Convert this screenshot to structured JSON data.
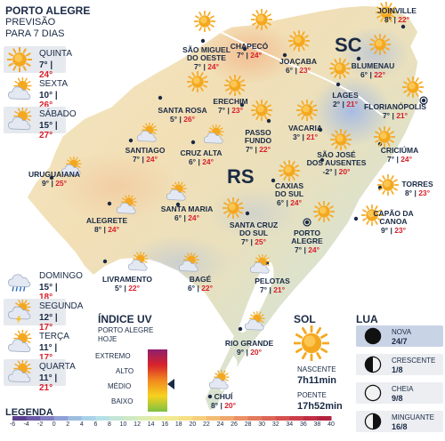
{
  "header": {
    "title": "PORTO ALEGRE",
    "line1": "PREVISÃO",
    "line2": "PARA 7 DIAS"
  },
  "forecast": [
    {
      "day": "QUINTA",
      "min": "7°",
      "max": "24°",
      "icon": "sun-icon"
    },
    {
      "day": "SEXTA",
      "min": "10°",
      "max": "26°",
      "icon": "sun-cloud-icon"
    },
    {
      "day": "SÁBADO",
      "min": "15°",
      "max": "27°",
      "icon": "sun-cloud-icon"
    },
    {
      "day": "DOMINGO",
      "min": "15°",
      "max": "18°",
      "icon": "rain-icon"
    },
    {
      "day": "SEGUNDA",
      "min": "12°",
      "max": "17°",
      "icon": "storm-icon"
    },
    {
      "day": "TERÇA",
      "min": "11°",
      "max": "17°",
      "icon": "sun-cloud-icon"
    },
    {
      "day": "QUARTA",
      "min": "11°",
      "max": "21°",
      "icon": "sun-cloud-icon"
    }
  ],
  "map": {
    "state_rs": "RS",
    "state_sc": "SC"
  },
  "cities": [
    {
      "name": "SÃO MIGUEL\nDO OESTE",
      "min": "7°",
      "max": "24°",
      "icon": "sun-icon"
    },
    {
      "name": "CHAPECÓ",
      "min": "7°",
      "max": "24°",
      "icon": "sun-icon"
    },
    {
      "name": "JOAÇABA",
      "min": "6°",
      "max": "23°",
      "icon": "sun-icon"
    },
    {
      "name": "JOINVILLE",
      "min": "8°",
      "max": "22°",
      "icon": "sun-icon"
    },
    {
      "name": "BLUMENAU",
      "min": "6°",
      "max": "22°",
      "icon": "sun-icon"
    },
    {
      "name": "LAGES",
      "min": "2°",
      "max": "21°",
      "icon": "sun-icon"
    },
    {
      "name": "FLORIANÓPOLIS",
      "min": "7°",
      "max": "21°",
      "icon": "sun-icon"
    },
    {
      "name": "SANTA ROSA",
      "min": "5°",
      "max": "26°",
      "icon": "sun-icon"
    },
    {
      "name": "ERECHIM",
      "min": "7°",
      "max": "23°",
      "icon": "sun-icon"
    },
    {
      "name": "VACARIA",
      "min": "3°",
      "max": "21°",
      "icon": "sun-icon"
    },
    {
      "name": "PASSO\nFUNDO",
      "min": "7°",
      "max": "22°",
      "icon": "sun-icon"
    },
    {
      "name": "SANTIAGO",
      "min": "7°",
      "max": "24°",
      "icon": "sun-cloud-icon"
    },
    {
      "name": "CRUZ ALTA",
      "min": "6°",
      "max": "24°",
      "icon": "sun-cloud-icon"
    },
    {
      "name": "SÃO JOSÉ\nDOS AUSENTES",
      "min": "-2°",
      "max": "20°",
      "icon": "sun-icon"
    },
    {
      "name": "CRICIÚMA",
      "min": "7°",
      "max": "24°",
      "icon": "sun-icon"
    },
    {
      "name": "URUGUAIANA",
      "min": "9°",
      "max": "25°",
      "icon": "sun-cloud-icon"
    },
    {
      "name": "CAXIAS\nDO SUL",
      "min": "6°",
      "max": "24°",
      "icon": "sun-icon"
    },
    {
      "name": "TORRES",
      "min": "8°",
      "max": "23°",
      "icon": "sun-icon"
    },
    {
      "name": "SANTA MARIA",
      "min": "6°",
      "max": "24°",
      "icon": "sun-cloud-icon"
    },
    {
      "name": "ALEGRETE",
      "min": "8°",
      "max": "24°",
      "icon": "sun-cloud-icon"
    },
    {
      "name": "CAPÃO DA\nCANOA",
      "min": "9°",
      "max": "23°",
      "icon": "sun-icon"
    },
    {
      "name": "SANTA CRUZ\nDO SUL",
      "min": "7°",
      "max": "25°",
      "icon": "sun-icon"
    },
    {
      "name": "PORTO\nALEGRE",
      "min": "7°",
      "max": "24°",
      "icon": "sun-icon"
    },
    {
      "name": "LIVRAMENTO",
      "min": "5°",
      "max": "22°",
      "icon": "sun-cloud-icon"
    },
    {
      "name": "BAGÉ",
      "min": "6°",
      "max": "22°",
      "icon": "sun-cloud-icon"
    },
    {
      "name": "PELOTAS",
      "min": "7°",
      "max": "21°",
      "icon": "sun-cloud-icon"
    },
    {
      "name": "RIO GRANDE",
      "min": "9°",
      "max": "20°",
      "icon": "sun-cloud-icon"
    },
    {
      "name": "CHUÍ",
      "min": "8°",
      "max": "20°",
      "icon": "sun-cloud-icon"
    }
  ],
  "uv": {
    "title": "ÍNDICE UV",
    "sub1": "PORTO ALEGRE",
    "sub2": "HOJE",
    "levels": [
      "EXTREMO",
      "ALTO",
      "MÉDIO",
      "BAIXO"
    ],
    "current_level": "MÉDIO"
  },
  "sun": {
    "title": "SOL",
    "sunrise_label": "NASCENTE",
    "sunrise": "7h11min",
    "sunset_label": "POENTE",
    "sunset": "17h52min"
  },
  "moon": {
    "title": "LUA",
    "phases": [
      {
        "name": "NOVA",
        "date": "24/7",
        "current": true
      },
      {
        "name": "CRESCENTE",
        "date": "1/8",
        "current": false
      },
      {
        "name": "CHEIA",
        "date": "9/8",
        "current": false
      },
      {
        "name": "MINGUANTE",
        "date": "16/8",
        "current": false
      }
    ]
  },
  "legend": {
    "title": "LEGENDA",
    "ticks": [
      "-6",
      "-4",
      "-2",
      "0",
      "2",
      "4",
      "6",
      "8",
      "10",
      "12",
      "14",
      "16",
      "18",
      "20",
      "22",
      "24",
      "26",
      "28",
      "30",
      "32",
      "34",
      "36",
      "38",
      "40"
    ],
    "colors": [
      "#5a3e8e",
      "#6c5aa8",
      "#7f7cc0",
      "#8fa0d4",
      "#9dbde0",
      "#a9d2e8",
      "#b6e0e6",
      "#c3e6d6",
      "#cfe9c3",
      "#dcecb0",
      "#e8ee9f",
      "#f1ea91",
      "#f6df86",
      "#f6cf7c",
      "#f3bc74",
      "#efa76c",
      "#ea9064",
      "#e37a5c",
      "#dc6556",
      "#d45150",
      "#cb3f4a",
      "#c02f45",
      "#b32440"
    ]
  },
  "colors": {
    "sun": "#f5a81f",
    "temp_max": "#d81e2a",
    "uv_current": "#1a2a45"
  }
}
